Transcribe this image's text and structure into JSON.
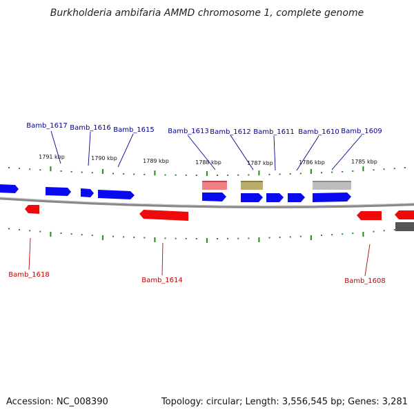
{
  "title": "Burkholderia ambifaria AMMD chromosome 1, complete genome",
  "footer": {
    "accession": "Accession: NC_008390",
    "summary": "Topology: circular; Length: 3,556,545 bp; Genes: 3,281"
  },
  "colors": {
    "forward_gene": "#0a0aee",
    "reverse_gene": "#ee0a0a",
    "forward_label": "#00008b",
    "reverse_label": "#c00000",
    "backbone": "#888888",
    "ticks": "#1a8a1a",
    "rna_pink": "#ef7f84",
    "rna_olive": "#b9ad6a",
    "pseudo_grey": "#bdbdbd",
    "dark_grey": "#555555"
  },
  "scale_labels": [
    "1791 kbp",
    "1790 kbp",
    "1789 kbp",
    "1788 kbp",
    "1787 kbp",
    "1786 kbp",
    "1785 kbp"
  ],
  "gene_labels": {
    "top": [
      "Bamb_1617",
      "Bamb_1616",
      "Bamb_1615",
      "Bamb_1613",
      "Bamb_1612",
      "Bamb_1611",
      "Bamb_1610",
      "Bamb_1609"
    ],
    "bottom": [
      "Bamb_1618",
      "Bamb_1614",
      "Bamb_1608"
    ]
  }
}
